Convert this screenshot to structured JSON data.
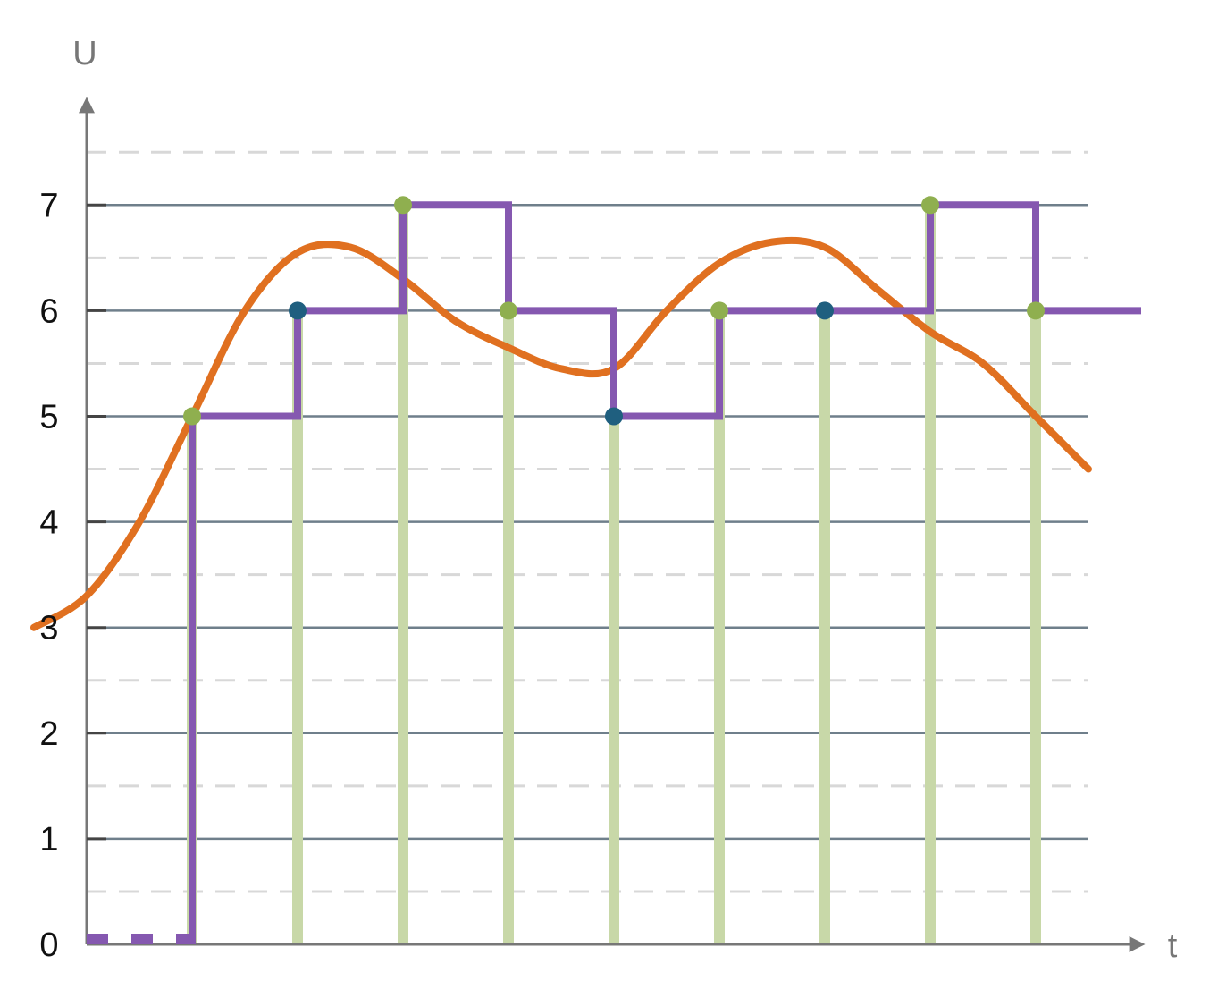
{
  "chart_data": {
    "type": "line",
    "xlabel": "t",
    "ylabel": "U",
    "ylim": [
      0,
      7
    ],
    "y_ticks": [
      "0",
      "1",
      "2",
      "3",
      "4",
      "5",
      "6",
      "7"
    ],
    "grid": {
      "major": true,
      "minor_dashed": true
    },
    "series": [
      {
        "kind": "analog-signal",
        "x": [
          -0.5,
          0,
          0.5,
          1.0,
          1.5,
          2.0,
          2.5,
          3.0,
          3.5,
          4.0,
          4.5,
          5.0,
          5.5,
          6.0,
          6.5,
          7.0,
          7.5,
          8.0,
          8.5,
          9.0,
          9.5
        ],
        "values": [
          3.0,
          3.3,
          4.0,
          5.0,
          6.0,
          6.55,
          6.6,
          6.3,
          5.9,
          5.65,
          5.45,
          5.45,
          6.0,
          6.45,
          6.65,
          6.6,
          6.2,
          5.8,
          5.5,
          5.0,
          4.5
        ]
      },
      {
        "kind": "sampled-held-signal",
        "x": [
          0,
          1,
          2,
          3,
          4,
          5,
          6,
          7,
          8,
          9,
          10
        ],
        "values": [
          0,
          5,
          6,
          7,
          6,
          5,
          6,
          6,
          7,
          6,
          6
        ]
      }
    ],
    "sample_times": [
      1,
      2,
      3,
      4,
      5,
      6,
      7,
      8,
      9
    ],
    "sample_points": [
      {
        "x": 1,
        "y": 5,
        "style": "green"
      },
      {
        "x": 2,
        "y": 6,
        "style": "blue"
      },
      {
        "x": 3,
        "y": 7,
        "style": "green"
      },
      {
        "x": 4,
        "y": 6,
        "style": "green"
      },
      {
        "x": 5,
        "y": 5,
        "style": "blue"
      },
      {
        "x": 6,
        "y": 6,
        "style": "green"
      },
      {
        "x": 7,
        "y": 6,
        "style": "blue"
      },
      {
        "x": 8,
        "y": 7,
        "style": "green"
      },
      {
        "x": 9,
        "y": 6,
        "style": "green"
      }
    ],
    "colors": {
      "analog": "#e07020",
      "held": "#8558b0",
      "sample_lines": "#c8d8a8",
      "point_green": "#8faf4f",
      "point_blue": "#1f5f7f",
      "grid_major": "#6f7f8b",
      "grid_minor": "#d8d8d8",
      "axis": "#777777"
    }
  }
}
